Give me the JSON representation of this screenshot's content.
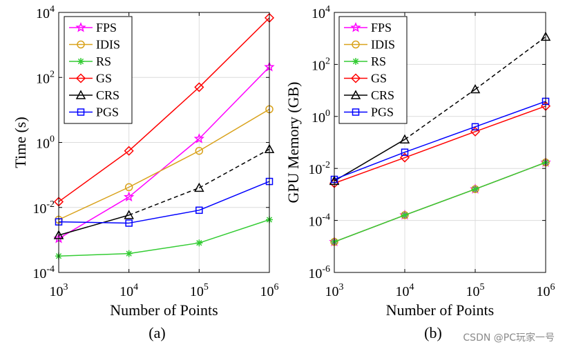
{
  "chart_data": [
    {
      "type": "line",
      "panel_label": "(a)",
      "xlabel": "Number of Points",
      "ylabel": "Time (s)",
      "x_log": true,
      "y_log": true,
      "xlim_exp": [
        3,
        6
      ],
      "ylim_exp": [
        -4,
        4
      ],
      "xticks_exp": [
        3,
        4,
        5,
        6
      ],
      "yticks_exp": [
        -4,
        -2,
        0,
        2,
        4
      ],
      "grid": true,
      "legend_position": "top-left",
      "x": [
        1000,
        10000,
        100000,
        1000000
      ],
      "series": [
        {
          "name": "FPS",
          "color": "#ff00ff",
          "marker": "star",
          "dash": false,
          "values": [
            0.0011,
            0.021,
            1.3,
            210
          ]
        },
        {
          "name": "IDIS",
          "color": "#d9a21b",
          "marker": "circle",
          "dash": false,
          "values": [
            0.0042,
            0.042,
            0.55,
            10.5
          ]
        },
        {
          "name": "RS",
          "color": "#33cc33",
          "marker": "asterisk",
          "dash": false,
          "values": [
            0.00032,
            0.00038,
            0.00081,
            0.0042
          ]
        },
        {
          "name": "GS",
          "color": "#ff0000",
          "marker": "diamond",
          "dash": false,
          "values": [
            0.015,
            0.55,
            50,
            6800
          ]
        },
        {
          "name": "CRS",
          "color": "#000000",
          "marker": "triangle",
          "dash": "partial",
          "values": [
            0.0014,
            0.0058,
            0.04,
            0.62
          ]
        },
        {
          "name": "PGS",
          "color": "#0000ff",
          "marker": "square",
          "dash": false,
          "values": [
            0.0036,
            0.0033,
            0.0082,
            0.063
          ]
        }
      ]
    },
    {
      "type": "line",
      "panel_label": "(b)",
      "xlabel": "Number of Points",
      "ylabel": "GPU Memory (GB)",
      "x_log": true,
      "y_log": true,
      "xlim_exp": [
        3,
        6
      ],
      "ylim_exp": [
        -6,
        4
      ],
      "xticks_exp": [
        3,
        4,
        5,
        6
      ],
      "yticks_exp": [
        -6,
        -4,
        -2,
        0,
        2,
        4
      ],
      "grid": true,
      "legend_position": "top-left",
      "x": [
        1000,
        10000,
        100000,
        1000000
      ],
      "series": [
        {
          "name": "FPS",
          "color": "#ff00ff",
          "marker": "star",
          "dash": false,
          "values": [
            1.5e-05,
            0.00016,
            0.0016,
            0.017
          ]
        },
        {
          "name": "IDIS",
          "color": "#d9a21b",
          "marker": "circle",
          "dash": false,
          "values": [
            1.5e-05,
            0.00016,
            0.0016,
            0.017
          ]
        },
        {
          "name": "RS",
          "color": "#33cc33",
          "marker": "asterisk",
          "dash": false,
          "values": [
            1.5e-05,
            0.00016,
            0.0016,
            0.017
          ]
        },
        {
          "name": "GS",
          "color": "#ff0000",
          "marker": "diamond",
          "dash": false,
          "values": [
            0.0027,
            0.026,
            0.26,
            2.5
          ]
        },
        {
          "name": "CRS",
          "color": "#000000",
          "marker": "triangle",
          "dash": "partial",
          "values": [
            0.0033,
            0.13,
            11,
            1150
          ]
        },
        {
          "name": "PGS",
          "color": "#0000ff",
          "marker": "square",
          "dash": false,
          "values": [
            0.0038,
            0.042,
            0.4,
            3.8
          ]
        }
      ]
    }
  ],
  "watermark": "CSDN @PC玩家一号"
}
